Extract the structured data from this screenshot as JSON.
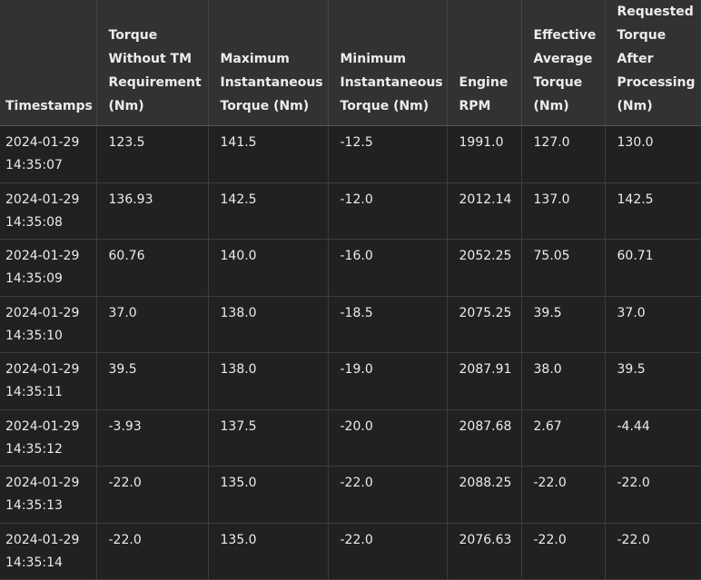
{
  "table": {
    "headers": [
      "Timestamps",
      "Torque Without TM Requirement (Nm)",
      "Maximum Instantaneous Torque (Nm)",
      "Minimum Instantaneous Torque (Nm)",
      "Engine RPM",
      "Effective Average Torque (Nm)",
      "Requested Torque After Processing (Nm)"
    ],
    "rows": [
      {
        "date": "2024-01-29",
        "time": "14:35:07",
        "torque_without_tm": "123.5",
        "max_torque": "141.5",
        "min_torque": "-12.5",
        "rpm": "1991.0",
        "effective_avg": "127.0",
        "requested": "130.0"
      },
      {
        "date": "2024-01-29",
        "time": "14:35:08",
        "torque_without_tm": "136.93",
        "max_torque": "142.5",
        "min_torque": "-12.0",
        "rpm": "2012.14",
        "effective_avg": "137.0",
        "requested": "142.5"
      },
      {
        "date": "2024-01-29",
        "time": "14:35:09",
        "torque_without_tm": "60.76",
        "max_torque": "140.0",
        "min_torque": "-16.0",
        "rpm": "2052.25",
        "effective_avg": "75.05",
        "requested": "60.71"
      },
      {
        "date": "2024-01-29",
        "time": "14:35:10",
        "torque_without_tm": "37.0",
        "max_torque": "138.0",
        "min_torque": "-18.5",
        "rpm": "2075.25",
        "effective_avg": "39.5",
        "requested": "37.0"
      },
      {
        "date": "2024-01-29",
        "time": "14:35:11",
        "torque_without_tm": "39.5",
        "max_torque": "138.0",
        "min_torque": "-19.0",
        "rpm": "2087.91",
        "effective_avg": "38.0",
        "requested": "39.5"
      },
      {
        "date": "2024-01-29",
        "time": "14:35:12",
        "torque_without_tm": "-3.93",
        "max_torque": "137.5",
        "min_torque": "-20.0",
        "rpm": "2087.68",
        "effective_avg": "2.67",
        "requested": "-4.44"
      },
      {
        "date": "2024-01-29",
        "time": "14:35:13",
        "torque_without_tm": "-22.0",
        "max_torque": "135.0",
        "min_torque": "-22.0",
        "rpm": "2088.25",
        "effective_avg": "-22.0",
        "requested": "-22.0"
      },
      {
        "date": "2024-01-29",
        "time": "14:35:14",
        "torque_without_tm": "-22.0",
        "max_torque": "135.0",
        "min_torque": "-22.0",
        "rpm": "2076.63",
        "effective_avg": "-22.0",
        "requested": "-22.0"
      }
    ]
  }
}
